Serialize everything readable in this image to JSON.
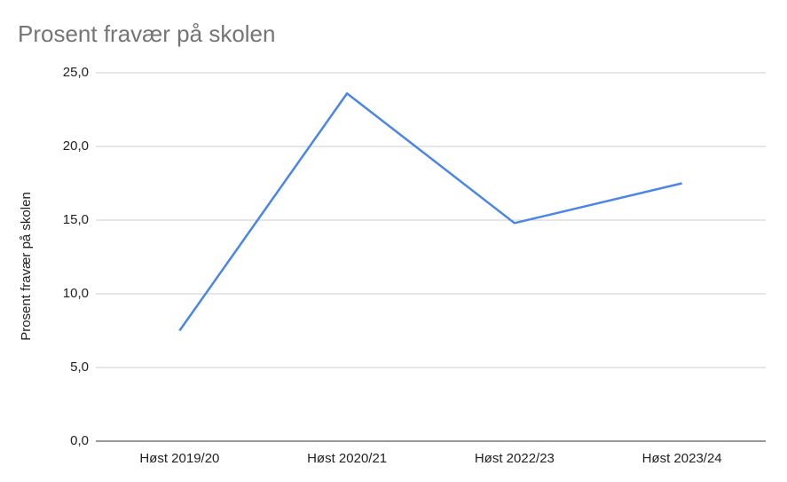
{
  "chart_data": {
    "type": "line",
    "title": "Prosent fravær på skolen",
    "y_label": "Prosent fravær på skolen",
    "categories": [
      "Høst 2019/20",
      "Høst 2020/21",
      "Høst 2022/23",
      "Høst 2023/24"
    ],
    "values": [
      7.5,
      23.6,
      14.8,
      17.5
    ],
    "color": "#4a86e8",
    "ylim": [
      0,
      25
    ],
    "yticks": [
      {
        "value": 0,
        "label": "0,0"
      },
      {
        "value": 5,
        "label": "5,0"
      },
      {
        "value": 10,
        "label": "10,0"
      },
      {
        "value": 15,
        "label": "15,0"
      },
      {
        "value": 20,
        "label": "20,0"
      },
      {
        "value": 25,
        "label": "25,0"
      }
    ],
    "grid": true
  }
}
